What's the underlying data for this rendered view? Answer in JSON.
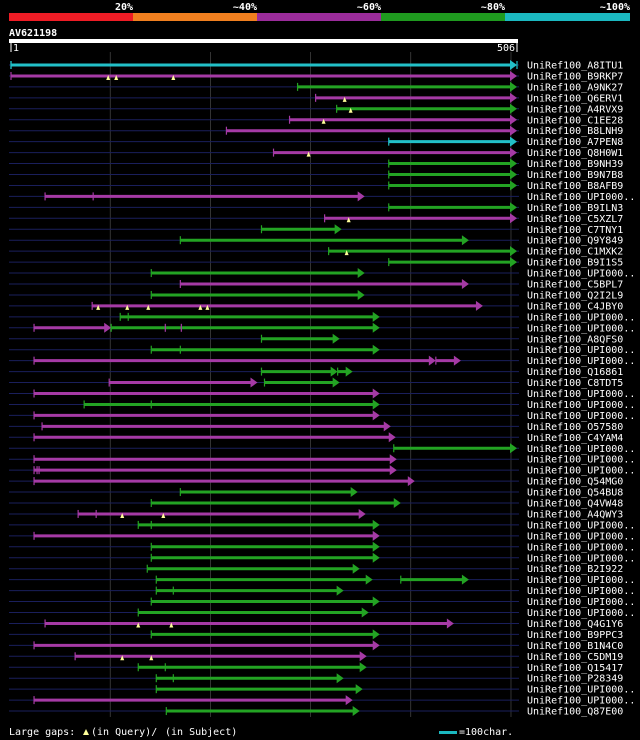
{
  "colors": {
    "background": "#000000",
    "scale": [
      "#ee1c25",
      "#f07f1f",
      "#9b2c9b",
      "#1f9a1f",
      "#1bb8c0"
    ],
    "query_bar": "#1bb8c0",
    "hit": [
      "#ee1c25",
      "#f07f1f",
      "#a53aa5",
      "#23a323",
      "#22c0c8"
    ],
    "row_line": "#1a1f5c",
    "grid": "#555555",
    "gap_marker": "#ffff99"
  },
  "identity_scale": {
    "labels": [
      "20%",
      "~40%",
      "~60%",
      "~80%",
      "~100%"
    ]
  },
  "query": {
    "id": "AV621198",
    "start_label": "1",
    "end_label": "506",
    "length": 506
  },
  "grid_positions": [
    100,
    200,
    300,
    400,
    500
  ],
  "hits": [
    {
      "name": "UniRef100_A8ITU1",
      "segments": [
        [
          1,
          506,
          4
        ]
      ],
      "qgaps": [],
      "sgaps": [
        [
          1,
          6
        ],
        [
          506,
          6
        ]
      ]
    },
    {
      "name": "UniRef100_B9RKP7",
      "segments": [
        [
          1,
          506,
          2
        ]
      ],
      "qgaps": [
        98,
        106,
        163
      ],
      "sgaps": []
    },
    {
      "name": "UniRef100_A9NK27",
      "segments": [
        [
          287,
          506,
          3
        ]
      ],
      "qgaps": [],
      "sgaps": []
    },
    {
      "name": "UniRef100_Q6ERV1",
      "segments": [
        [
          305,
          506,
          2
        ]
      ],
      "qgaps": [
        334
      ],
      "sgaps": []
    },
    {
      "name": "UniRef100_A4RVX9",
      "segments": [
        [
          326,
          506,
          3
        ]
      ],
      "qgaps": [
        340
      ],
      "sgaps": []
    },
    {
      "name": "UniRef100_C1EE28",
      "segments": [
        [
          279,
          506,
          2
        ]
      ],
      "qgaps": [
        313
      ],
      "sgaps": []
    },
    {
      "name": "UniRef100_B8LNH9",
      "segments": [
        [
          216,
          506,
          2
        ]
      ],
      "qgaps": [],
      "sgaps": []
    },
    {
      "name": "UniRef100_A7PEN8",
      "segments": [
        [
          378,
          506,
          4
        ]
      ],
      "qgaps": [],
      "sgaps": []
    },
    {
      "name": "UniRef100_Q8H0W1",
      "segments": [
        [
          263,
          506,
          2
        ]
      ],
      "qgaps": [
        298
      ],
      "sgaps": []
    },
    {
      "name": "UniRef100_B9NH39",
      "segments": [
        [
          378,
          506,
          3
        ]
      ],
      "qgaps": [],
      "sgaps": []
    },
    {
      "name": "UniRef100_B9N7B8",
      "segments": [
        [
          378,
          506,
          3
        ]
      ],
      "qgaps": [],
      "sgaps": []
    },
    {
      "name": "UniRef100_B8AFB9",
      "segments": [
        [
          378,
          506,
          3
        ]
      ],
      "qgaps": [],
      "sgaps": []
    },
    {
      "name": "UniRef100_UPI000..",
      "segments": [
        [
          35,
          354,
          2
        ]
      ],
      "qgaps": [],
      "sgaps": [
        [
          83,
          3
        ]
      ]
    },
    {
      "name": "UniRef100_B9ILN3",
      "segments": [
        [
          378,
          506,
          3
        ]
      ],
      "qgaps": [],
      "sgaps": []
    },
    {
      "name": "UniRef100_C5XZL7",
      "segments": [
        [
          314,
          506,
          2
        ]
      ],
      "qgaps": [
        338
      ],
      "sgaps": []
    },
    {
      "name": "UniRef100_C7TNY1",
      "segments": [
        [
          251,
          331,
          3
        ]
      ],
      "qgaps": [],
      "sgaps": []
    },
    {
      "name": "UniRef100_Q9Y849",
      "segments": [
        [
          170,
          458,
          3
        ]
      ],
      "qgaps": [],
      "sgaps": []
    },
    {
      "name": "UniRef100_C1MXK2",
      "segments": [
        [
          318,
          506,
          3
        ]
      ],
      "qgaps": [
        336
      ],
      "sgaps": []
    },
    {
      "name": "UniRef100_B9I1S5",
      "segments": [
        [
          378,
          506,
          3
        ]
      ],
      "qgaps": [],
      "sgaps": []
    },
    {
      "name": "UniRef100_UPI000..",
      "segments": [
        [
          141,
          354,
          3
        ]
      ],
      "qgaps": [],
      "sgaps": []
    },
    {
      "name": "UniRef100_C5BPL7",
      "segments": [
        [
          170,
          458,
          2
        ]
      ],
      "qgaps": [],
      "sgaps": []
    },
    {
      "name": "UniRef100_Q2I2L9",
      "segments": [
        [
          141,
          354,
          3
        ]
      ],
      "qgaps": [],
      "sgaps": []
    },
    {
      "name": "UniRef100_C4JBY0",
      "segments": [
        [
          82,
          472,
          2
        ]
      ],
      "qgaps": [
        88,
        117,
        138,
        190,
        197
      ],
      "sgaps": []
    },
    {
      "name": "UniRef100_UPI000..",
      "segments": [
        [
          110,
          369,
          3
        ]
      ],
      "qgaps": [],
      "sgaps": [
        [
          118,
          3
        ]
      ]
    },
    {
      "name": "UniRef100_UPI000..",
      "segments": [
        [
          24,
          101,
          2
        ],
        [
          101,
          369,
          3
        ]
      ],
      "qgaps": [],
      "sgaps": [
        [
          155,
          3
        ],
        [
          171,
          3
        ]
      ]
    },
    {
      "name": "UniRef100_A8QFS0",
      "segments": [
        [
          251,
          329,
          3
        ]
      ],
      "qgaps": [],
      "sgaps": []
    },
    {
      "name": "UniRef100_UPI000..",
      "segments": [
        [
          141,
          369,
          3
        ]
      ],
      "qgaps": [],
      "sgaps": [
        [
          170,
          3
        ]
      ]
    },
    {
      "name": "UniRef100_UPI000..",
      "segments": [
        [
          24,
          425,
          2
        ],
        [
          425,
          450,
          2
        ]
      ],
      "qgaps": [],
      "sgaps": []
    },
    {
      "name": "UniRef100_Q16861",
      "segments": [
        [
          251,
          327,
          3
        ],
        [
          327,
          342,
          3
        ]
      ],
      "qgaps": [],
      "sgaps": []
    },
    {
      "name": "UniRef100_C8TDT5",
      "segments": [
        [
          99,
          247,
          2
        ],
        [
          254,
          329,
          3
        ]
      ],
      "qgaps": [],
      "sgaps": []
    },
    {
      "name": "UniRef100_UPI000..",
      "segments": [
        [
          24,
          369,
          2
        ]
      ],
      "qgaps": [],
      "sgaps": []
    },
    {
      "name": "UniRef100_UPI000..",
      "segments": [
        [
          74,
          369,
          3
        ]
      ],
      "qgaps": [],
      "sgaps": [
        [
          141,
          3
        ]
      ]
    },
    {
      "name": "UniRef100_UPI000..",
      "segments": [
        [
          24,
          369,
          2
        ]
      ],
      "qgaps": [],
      "sgaps": []
    },
    {
      "name": "UniRef100_O57580",
      "segments": [
        [
          32,
          380,
          2
        ]
      ],
      "qgaps": [],
      "sgaps": []
    },
    {
      "name": "UniRef100_C4YAM4",
      "segments": [
        [
          24,
          385,
          2
        ]
      ],
      "qgaps": [],
      "sgaps": []
    },
    {
      "name": "UniRef100_UPI000..",
      "segments": [
        [
          383,
          506,
          3
        ]
      ],
      "qgaps": [],
      "sgaps": []
    },
    {
      "name": "UniRef100_UPI000..",
      "segments": [
        [
          24,
          386,
          2
        ]
      ],
      "qgaps": [],
      "sgaps": []
    },
    {
      "name": "UniRef100_UPI000..",
      "segments": [
        [
          24,
          386,
          2
        ]
      ],
      "qgaps": [],
      "sgaps": [
        [
          27,
          3
        ],
        [
          29,
          3
        ]
      ]
    },
    {
      "name": "UniRef100_Q54MG0",
      "segments": [
        [
          24,
          404,
          2
        ]
      ],
      "qgaps": [],
      "sgaps": []
    },
    {
      "name": "UniRef100_Q54BU8",
      "segments": [
        [
          170,
          347,
          3
        ]
      ],
      "qgaps": [],
      "sgaps": []
    },
    {
      "name": "UniRef100_Q4VW48",
      "segments": [
        [
          141,
          390,
          3
        ]
      ],
      "qgaps": [],
      "sgaps": []
    },
    {
      "name": "UniRef100_A4QWY3",
      "segments": [
        [
          68,
          355,
          2
        ]
      ],
      "qgaps": [
        112,
        153
      ],
      "sgaps": [
        [
          86,
          3
        ]
      ]
    },
    {
      "name": "UniRef100_UPI000..",
      "segments": [
        [
          128,
          369,
          3
        ]
      ],
      "qgaps": [],
      "sgaps": [
        [
          141,
          3
        ]
      ]
    },
    {
      "name": "UniRef100_UPI000..",
      "segments": [
        [
          24,
          369,
          2
        ]
      ],
      "qgaps": [],
      "sgaps": []
    },
    {
      "name": "UniRef100_UPI000..",
      "segments": [
        [
          141,
          369,
          3
        ]
      ],
      "qgaps": [],
      "sgaps": []
    },
    {
      "name": "UniRef100_UPI000..",
      "segments": [
        [
          141,
          369,
          3
        ]
      ],
      "qgaps": [],
      "sgaps": []
    },
    {
      "name": "UniRef100_B2I922",
      "segments": [
        [
          137,
          349,
          3
        ]
      ],
      "qgaps": [],
      "sgaps": []
    },
    {
      "name": "UniRef100_UPI000..",
      "segments": [
        [
          146,
          362,
          3
        ],
        [
          390,
          458,
          3
        ]
      ],
      "qgaps": [],
      "sgaps": []
    },
    {
      "name": "UniRef100_UPI000..",
      "segments": [
        [
          146,
          333,
          3
        ]
      ],
      "qgaps": [],
      "sgaps": [
        [
          163,
          3
        ]
      ]
    },
    {
      "name": "UniRef100_UPI000..",
      "segments": [
        [
          141,
          369,
          3
        ]
      ],
      "qgaps": [],
      "sgaps": []
    },
    {
      "name": "UniRef100_UPI000..",
      "segments": [
        [
          128,
          358,
          3
        ]
      ],
      "qgaps": [],
      "sgaps": []
    },
    {
      "name": "UniRef100_Q4G1Y6",
      "segments": [
        [
          35,
          443,
          2
        ]
      ],
      "qgaps": [
        128,
        161
      ],
      "sgaps": []
    },
    {
      "name": "UniRef100_B9PPC3",
      "segments": [
        [
          141,
          369,
          3
        ]
      ],
      "qgaps": [],
      "sgaps": []
    },
    {
      "name": "UniRef100_B1N4C0",
      "segments": [
        [
          24,
          369,
          2
        ]
      ],
      "qgaps": [],
      "sgaps": []
    },
    {
      "name": "UniRef100_C5DM19",
      "segments": [
        [
          65,
          356,
          2
        ]
      ],
      "qgaps": [
        112,
        141
      ],
      "sgaps": []
    },
    {
      "name": "UniRef100_Q15417",
      "segments": [
        [
          128,
          356,
          3
        ]
      ],
      "qgaps": [],
      "sgaps": [
        [
          155,
          3
        ]
      ]
    },
    {
      "name": "UniRef100_P28349",
      "segments": [
        [
          146,
          333,
          3
        ]
      ],
      "qgaps": [],
      "sgaps": [
        [
          163,
          3
        ]
      ]
    },
    {
      "name": "UniRef100_UPI000..",
      "segments": [
        [
          146,
          352,
          3
        ]
      ],
      "qgaps": [],
      "sgaps": []
    },
    {
      "name": "UniRef100_UPI000..",
      "segments": [
        [
          24,
          342,
          2
        ]
      ],
      "qgaps": [],
      "sgaps": []
    },
    {
      "name": "UniRef100_Q87E00",
      "segments": [
        [
          156,
          349,
          3
        ]
      ],
      "qgaps": [],
      "sgaps": []
    }
  ],
  "legend": {
    "gaps_label": "Large gaps:",
    "in_query_label": "(in Query)/",
    "in_subject_label": "(in Subject)",
    "scale_label": "=100char."
  }
}
